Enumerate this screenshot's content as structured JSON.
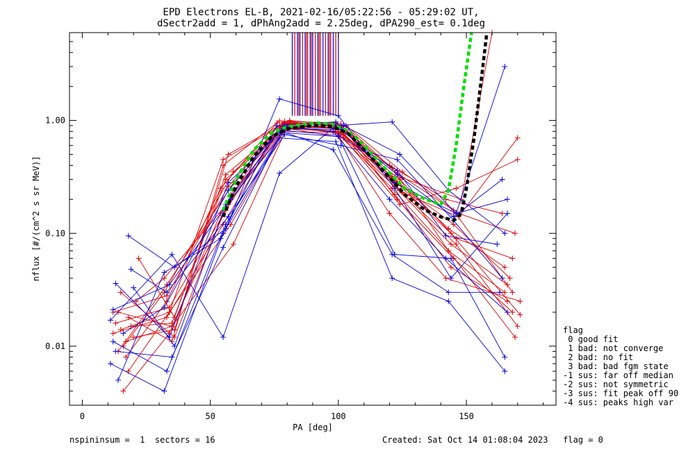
{
  "chart_data": {
    "type": "scatter",
    "title": "EPD Electrons EL-B, 2021-02-16/05:22:56 - 05:29:02 UT,",
    "subtitle": "dSectr2add = 1, dPhAng2add = 2.25deg, dPA290_est=   0.1deg",
    "xlabel": "PA [deg]",
    "ylabel": "nflux [#/(cm^2 s sr MeV)]",
    "xlim": [
      -5,
      185
    ],
    "ylim": [
      0.003,
      6.0
    ],
    "yscale": "log",
    "x_ticks": [
      0,
      50,
      100,
      150
    ],
    "x_tick_labels": [
      "0",
      "50",
      "100",
      "150"
    ],
    "y_ticks": [
      0.01,
      0.1,
      1.0
    ],
    "y_tick_labels": [
      "0.01",
      "0.10",
      "1.00"
    ],
    "grid": false,
    "colors": {
      "red": "#e00000",
      "blue": "#0000e0",
      "green": "#00e000",
      "black": "#000000"
    },
    "series": [
      {
        "color": "#e00000",
        "x": [
          12,
          33,
          55,
          77,
          99,
          121,
          143,
          165
        ],
        "y": [
          0.013,
          0.018,
          0.12,
          0.85,
          0.8,
          0.25,
          0.07,
          0.03
        ]
      },
      {
        "color": "#e00000",
        "x": [
          13,
          34,
          56,
          78,
          100,
          122,
          144,
          166
        ],
        "y": [
          0.016,
          0.022,
          0.16,
          0.92,
          0.86,
          0.22,
          0.05,
          0.025
        ]
      },
      {
        "color": "#e00000",
        "x": [
          14,
          35,
          57,
          79,
          101,
          123,
          145,
          167
        ],
        "y": [
          0.02,
          0.015,
          0.18,
          0.98,
          0.88,
          0.28,
          0.12,
          0.04
        ]
      },
      {
        "color": "#e00000",
        "x": [
          15,
          36,
          58,
          80,
          102,
          124,
          146,
          168
        ],
        "y": [
          0.03,
          0.012,
          0.22,
          0.9,
          0.75,
          0.3,
          0.09,
          0.06
        ]
      },
      {
        "color": "#e00000",
        "x": [
          16,
          32,
          59,
          81,
          103,
          125,
          147,
          169
        ],
        "y": [
          0.01,
          0.03,
          0.35,
          1.0,
          0.9,
          0.35,
          0.15,
          0.1
        ]
      },
      {
        "color": "#e00000",
        "x": [
          17,
          33,
          54,
          76,
          98,
          120,
          142,
          164
        ],
        "y": [
          0.008,
          0.025,
          0.25,
          0.95,
          0.92,
          0.4,
          0.2,
          0.15
        ]
      },
      {
        "color": "#e00000",
        "x": [
          18,
          34,
          55,
          77,
          99,
          121,
          143,
          165
        ],
        "y": [
          0.006,
          0.02,
          0.45,
          0.88,
          0.85,
          0.32,
          0.11,
          0.05
        ]
      },
      {
        "color": "#e00000",
        "x": [
          19,
          35,
          56,
          78,
          100,
          122,
          144,
          166
        ],
        "y": [
          0.015,
          0.016,
          0.3,
          0.8,
          0.78,
          0.26,
          0.08,
          0.035
        ]
      },
      {
        "color": "#e00000",
        "x": [
          20,
          36,
          57,
          79,
          101,
          123,
          145,
          168
        ],
        "y": [
          0.012,
          0.014,
          0.5,
          0.96,
          0.93,
          0.2,
          0.06,
          0.02
        ]
      },
      {
        "color": "#e00000",
        "x": [
          21,
          32,
          58,
          80,
          102,
          124,
          146,
          170
        ],
        "y": [
          0.025,
          0.04,
          0.2,
          0.85,
          0.7,
          0.18,
          0.25,
          0.45
        ]
      },
      {
        "color": "#e00000",
        "x": [
          14,
          33,
          59,
          81,
          103,
          125,
          147,
          170
        ],
        "y": [
          0.009,
          0.035,
          0.28,
          0.93,
          0.82,
          0.23,
          0.14,
          0.7
        ]
      },
      {
        "color": "#e00000",
        "x": [
          16,
          34,
          54,
          76,
          98,
          120,
          142,
          171
        ],
        "y": [
          0.004,
          0.013,
          0.15,
          0.9,
          0.86,
          0.15,
          0.04,
          0.025
        ]
      },
      {
        "color": "#e00000",
        "x": [
          18,
          35,
          55,
          77,
          99,
          121,
          143,
          169
        ],
        "y": [
          0.018,
          0.011,
          0.4,
          0.99,
          0.95,
          0.38,
          0.07,
          0.012
        ]
      },
      {
        "color": "#e00000",
        "x": [
          22,
          36,
          56,
          78,
          100,
          122,
          144,
          171
        ],
        "y": [
          0.06,
          0.018,
          0.33,
          0.87,
          0.8,
          0.29,
          0.1,
          0.019
        ]
      },
      {
        "color": "#e00000",
        "x": [
          12,
          33,
          57,
          79,
          101,
          123,
          145,
          168
        ],
        "y": [
          0.02,
          0.028,
          0.26,
          0.94,
          0.9,
          0.34,
          0.16,
          0.03
        ]
      },
      {
        "color": "#e00000",
        "x": [
          15,
          34,
          58,
          80,
          102,
          124,
          146,
          170
        ],
        "y": [
          0.014,
          0.02,
          0.12,
          0.89,
          0.77,
          0.24,
          0.08,
          0.015
        ]
      },
      {
        "color": "#e00000",
        "x": [
          17,
          35,
          59,
          81,
          103,
          125,
          148,
          160
        ],
        "y": [
          0.011,
          0.015,
          0.08,
          0.97,
          0.88,
          0.31,
          0.2,
          6.0
        ]
      },
      {
        "color": "#0000e0",
        "x": [
          11,
          32,
          55,
          77,
          99,
          121,
          143,
          165
        ],
        "y": [
          0.007,
          0.004,
          0.1,
          0.7,
          0.65,
          0.04,
          0.025,
          0.006
        ]
      },
      {
        "color": "#0000e0",
        "x": [
          12,
          33,
          56,
          78,
          100,
          122,
          144,
          165
        ],
        "y": [
          0.011,
          0.006,
          0.12,
          0.78,
          0.72,
          0.065,
          0.06,
          0.008
        ]
      },
      {
        "color": "#0000e0",
        "x": [
          13,
          34,
          57,
          79,
          101,
          123,
          145,
          164
        ],
        "y": [
          0.036,
          0.012,
          0.28,
          0.85,
          0.83,
          0.33,
          0.14,
          0.3
        ]
      },
      {
        "color": "#0000e0",
        "x": [
          11,
          35,
          55,
          77,
          99,
          121,
          143,
          165
        ],
        "y": [
          0.017,
          0.065,
          0.012,
          0.34,
          0.9,
          0.97,
          0.24,
          0.1
        ]
      },
      {
        "color": "#0000e0",
        "x": [
          14,
          32,
          54,
          76,
          98,
          120,
          142,
          166
        ],
        "y": [
          0.005,
          0.045,
          0.09,
          0.9,
          0.8,
          0.2,
          0.06,
          0.02
        ]
      },
      {
        "color": "#0000e0",
        "x": [
          18,
          36,
          56,
          77,
          100,
          122,
          144,
          166
        ],
        "y": [
          0.095,
          0.05,
          0.11,
          1.55,
          1.1,
          0.25,
          0.04,
          0.15
        ]
      },
      {
        "color": "#0000e0",
        "x": [
          19,
          33,
          57,
          79,
          101,
          123,
          145,
          164
        ],
        "y": [
          0.048,
          0.03,
          0.14,
          0.75,
          0.6,
          0.45,
          0.13,
          0.04
        ]
      },
      {
        "color": "#0000e0",
        "x": [
          12,
          34,
          58,
          80,
          102,
          124,
          146,
          165
        ],
        "y": [
          0.021,
          0.035,
          0.2,
          0.88,
          0.9,
          0.5,
          0.15,
          3.0
        ]
      },
      {
        "color": "#0000e0",
        "x": [
          13,
          35,
          55,
          78,
          98,
          121,
          143,
          163
        ],
        "y": [
          0.009,
          0.008,
          0.075,
          0.8,
          0.55,
          0.065,
          0.03,
          0.03
        ]
      },
      {
        "color": "#0000e0",
        "x": [
          20,
          36,
          56,
          79,
          99,
          122,
          146,
          166
        ],
        "y": [
          0.033,
          0.01,
          0.18,
          0.92,
          0.97,
          0.28,
          0.15,
          0.2
        ]
      },
      {
        "color": "#0000e0",
        "x": [
          16,
          32,
          57,
          77,
          100,
          123,
          142,
          162
        ],
        "y": [
          0.013,
          0.022,
          0.24,
          0.82,
          0.74,
          0.36,
          0.095,
          0.08
        ]
      }
    ],
    "fit_green": {
      "color": "#00e000",
      "x": [
        55,
        60,
        67,
        74,
        80,
        86,
        92,
        98,
        104,
        110,
        118,
        126,
        134,
        140,
        143,
        146,
        149,
        152
      ],
      "y": [
        0.16,
        0.3,
        0.55,
        0.78,
        0.88,
        0.92,
        0.95,
        0.92,
        0.8,
        0.6,
        0.38,
        0.25,
        0.2,
        0.18,
        0.24,
        0.6,
        2.0,
        6.0
      ]
    },
    "fit_black": {
      "color": "#000000",
      "x": [
        55,
        60,
        67,
        74,
        80,
        86,
        92,
        98,
        104,
        110,
        118,
        126,
        134,
        140,
        145,
        148,
        150,
        153,
        156,
        158
      ],
      "y": [
        0.14,
        0.26,
        0.48,
        0.72,
        0.84,
        0.88,
        0.9,
        0.88,
        0.76,
        0.55,
        0.35,
        0.22,
        0.16,
        0.14,
        0.13,
        0.15,
        0.25,
        0.7,
        2.5,
        6.0
      ]
    },
    "vertical_lines_x": [
      82,
      83,
      84,
      84.5,
      85,
      86,
      87,
      87.5,
      88,
      89,
      89.5,
      90,
      91,
      92,
      92.5,
      93,
      94,
      95,
      96,
      96.5,
      97,
      98,
      99,
      100
    ],
    "vertical_lines_colors": [
      "#0000e0",
      "#e00000",
      "#0000e0",
      "#e00000",
      "#0000e0",
      "#e00000",
      "#0000e0",
      "#e00000",
      "#e00000",
      "#0000e0",
      "#e00000",
      "#0000e0",
      "#e00000",
      "#0000e0",
      "#e00000",
      "#e00000",
      "#0000e0",
      "#e00000",
      "#0000e0",
      "#e00000",
      "#e00000",
      "#0000e0",
      "#e00000",
      "#0000e0"
    ]
  },
  "legend": {
    "title": "flag",
    "items": [
      " 0 good fit",
      " 1 bad: not converge",
      " 2 bad: no fit",
      " 3 bad: bad fgm state",
      "-1 sus: far off median",
      "-2 sus: not symmetric",
      "-3 sus: fit peak off 90",
      "-4 sus: peaks high var"
    ]
  },
  "footer": {
    "left": "nspininsum =  1  sectors = 16",
    "right": "Created: Sat Oct 14 01:08:04 2023   flag = 0"
  }
}
